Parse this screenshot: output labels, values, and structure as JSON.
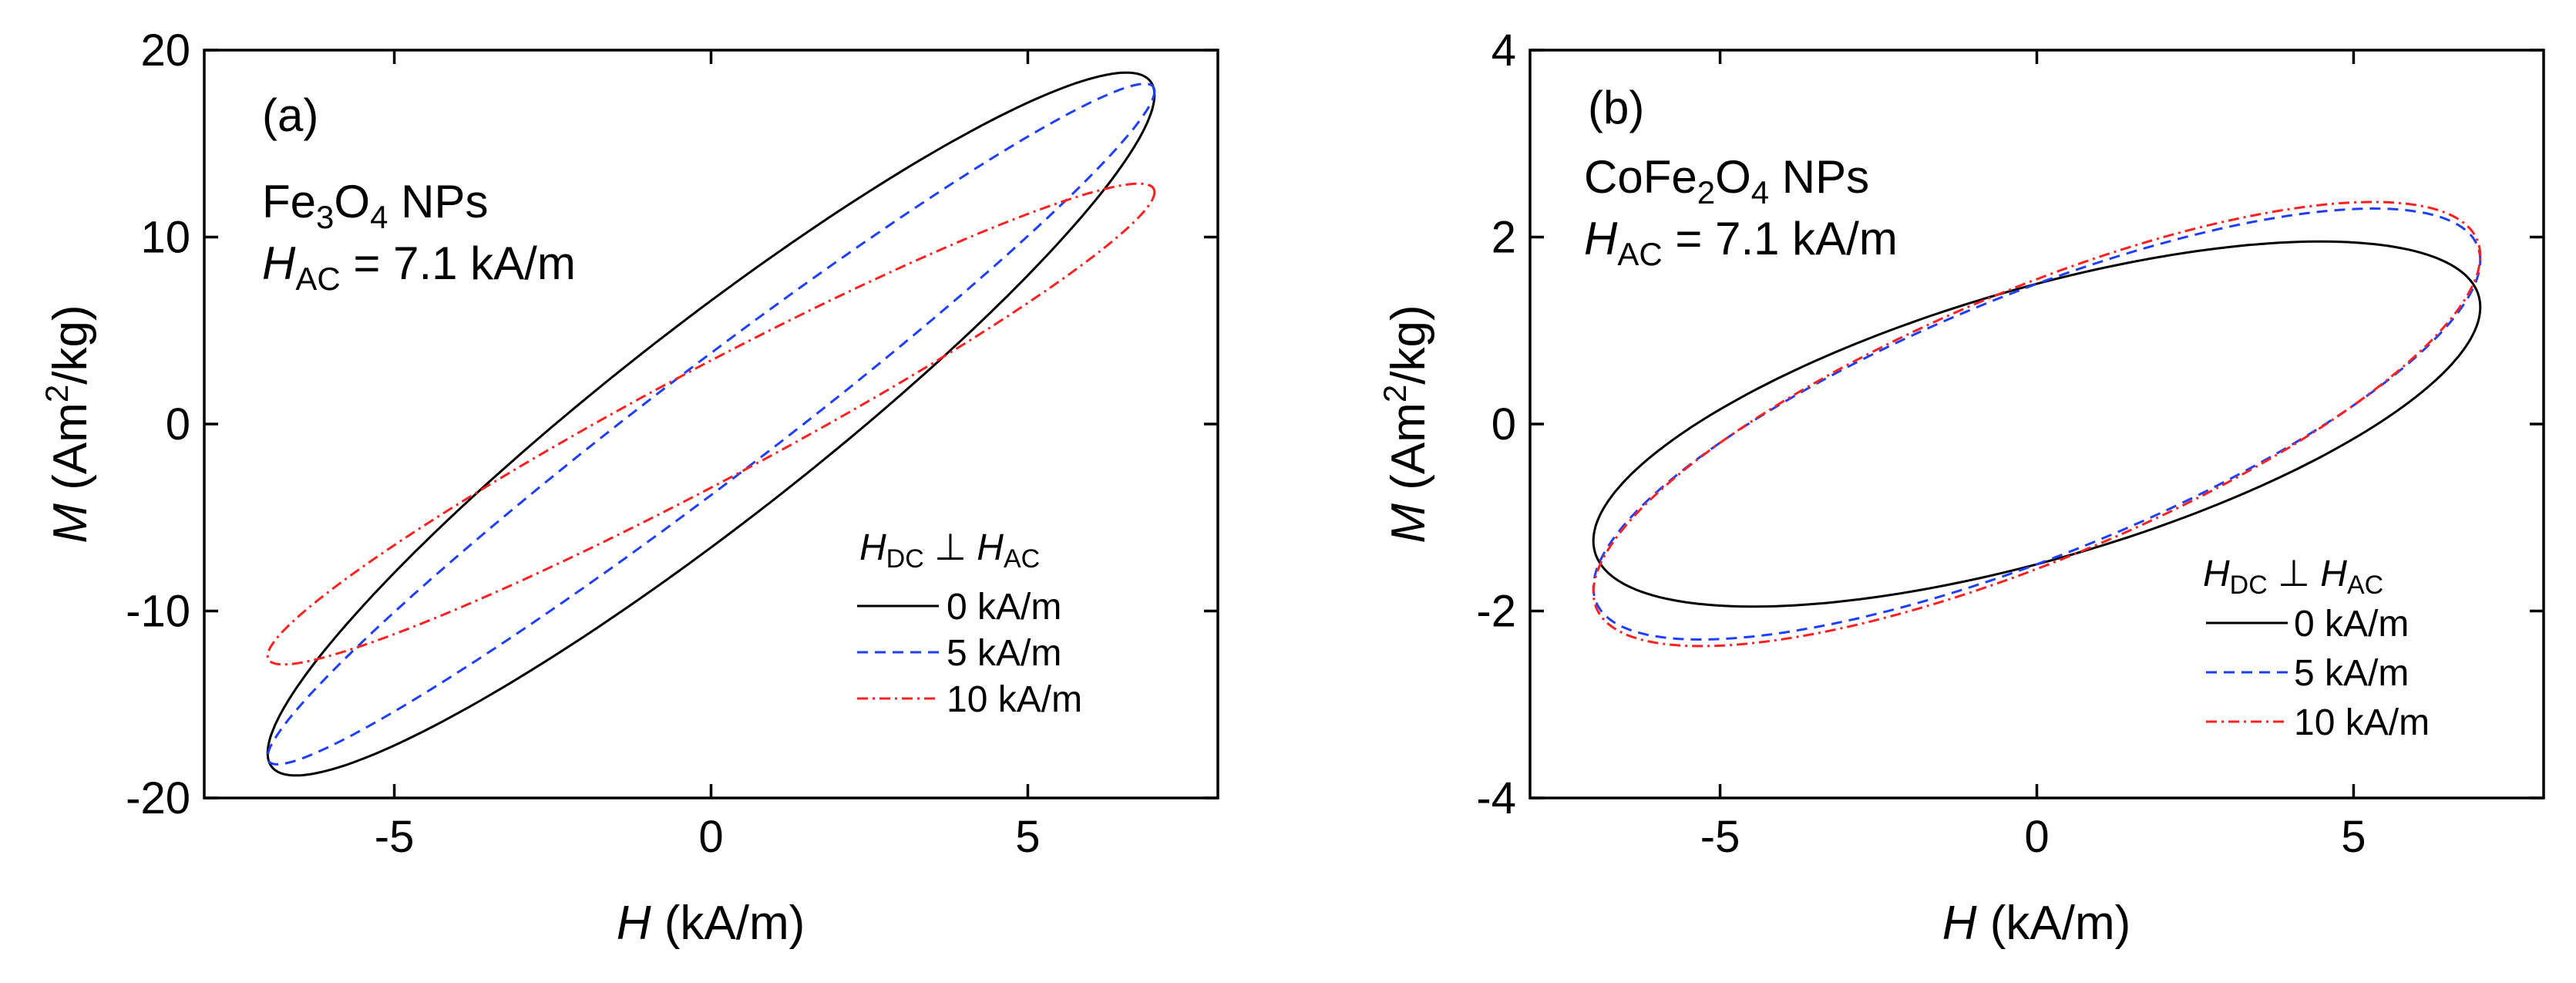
{
  "chart_data": [
    {
      "type": "line",
      "panel_label": "(a)",
      "sample": {
        "prefix": "Fe",
        "sub1": "3",
        "mid": "O",
        "sub2": "4",
        "suffix": " NPs"
      },
      "field_note": {
        "symbol": "H",
        "sub": "AC",
        "rest": " = 7.1 kA/m"
      },
      "xlabel": {
        "symbol": "H",
        "units": " (kA/m)"
      },
      "ylabel": {
        "symbol": "M",
        "pre": " (Am",
        "sup": "2",
        "post": "/kg)"
      },
      "xlim": [
        -8,
        8
      ],
      "ylim": [
        -20,
        20
      ],
      "xticks": [
        -5,
        0,
        5
      ],
      "xtick_labels": [
        "-5",
        "0",
        "5"
      ],
      "yticks": [
        -20,
        -10,
        0,
        10,
        20
      ],
      "ytick_labels": [
        "-20",
        "-10",
        "0",
        "10",
        "20"
      ],
      "legend": {
        "title": {
          "h1": "H",
          "s1": "DC",
          "op": " ⊥ ",
          "h2": "H",
          "s2": "AC"
        },
        "placement": "bottom-right",
        "entries": [
          "0 kA/m",
          "5 kA/m",
          "10 kA/m"
        ]
      },
      "series": [
        {
          "name": "0 kA/m",
          "color": "#000000",
          "dash": "solid",
          "amplitude": 7.0,
          "m_at_hmax": 17.6,
          "m_remanent": 6.6,
          "m_peak": 18.4
        },
        {
          "name": "5 kA/m",
          "color": "#1f3fff",
          "dash": "dashed",
          "amplitude": 7.0,
          "m_at_hmax": 17.8,
          "m_remanent": 3.8,
          "m_peak": 18.0
        },
        {
          "name": "10 kA/m",
          "color": "#ff2020",
          "dash": "dash-dot",
          "amplitude": 7.0,
          "m_at_hmax": 12.4,
          "m_remanent": 3.4,
          "m_peak": 13.0
        }
      ]
    },
    {
      "type": "line",
      "panel_label": "(b)",
      "sample": {
        "prefix": "CoFe",
        "sub1": "2",
        "mid": "O",
        "sub2": "4",
        "suffix": " NPs"
      },
      "field_note": {
        "symbol": "H",
        "sub": "AC",
        "rest": " = 7.1 kA/m"
      },
      "xlabel": {
        "symbol": "H",
        "units": " (kA/m)"
      },
      "ylabel": {
        "symbol": "M",
        "pre": " (Am",
        "sup": "2",
        "post": "/kg)"
      },
      "xlim": [
        -8,
        8
      ],
      "ylim": [
        -4,
        4
      ],
      "xticks": [
        -5,
        0,
        5
      ],
      "xtick_labels": [
        "-5",
        "0",
        "5"
      ],
      "yticks": [
        -4,
        -2,
        0,
        2,
        4
      ],
      "ytick_labels": [
        "-4",
        "-2",
        "0",
        "2",
        "4"
      ],
      "legend": {
        "title": {
          "h1": "H",
          "s1": "DC",
          "op": " ⊥ ",
          "h2": "H",
          "s2": "AC"
        },
        "placement": "bottom-right",
        "entries": [
          "0 kA/m",
          "5 kA/m",
          "10 kA/m"
        ]
      },
      "series": [
        {
          "name": "0 kA/m",
          "color": "#000000",
          "dash": "solid",
          "amplitude": 7.0,
          "m_at_hmax": 1.25,
          "m_remanent": 1.5,
          "m_peak": 2.0
        },
        {
          "name": "5 kA/m",
          "color": "#1f3fff",
          "dash": "dashed",
          "amplitude": 7.0,
          "m_at_hmax": 1.75,
          "m_remanent": 1.5,
          "m_peak": 2.27
        },
        {
          "name": "10 kA/m",
          "color": "#ff2020",
          "dash": "dash-dot",
          "amplitude": 7.0,
          "m_at_hmax": 1.8,
          "m_remanent": 1.55,
          "m_peak": 2.36
        }
      ]
    }
  ]
}
